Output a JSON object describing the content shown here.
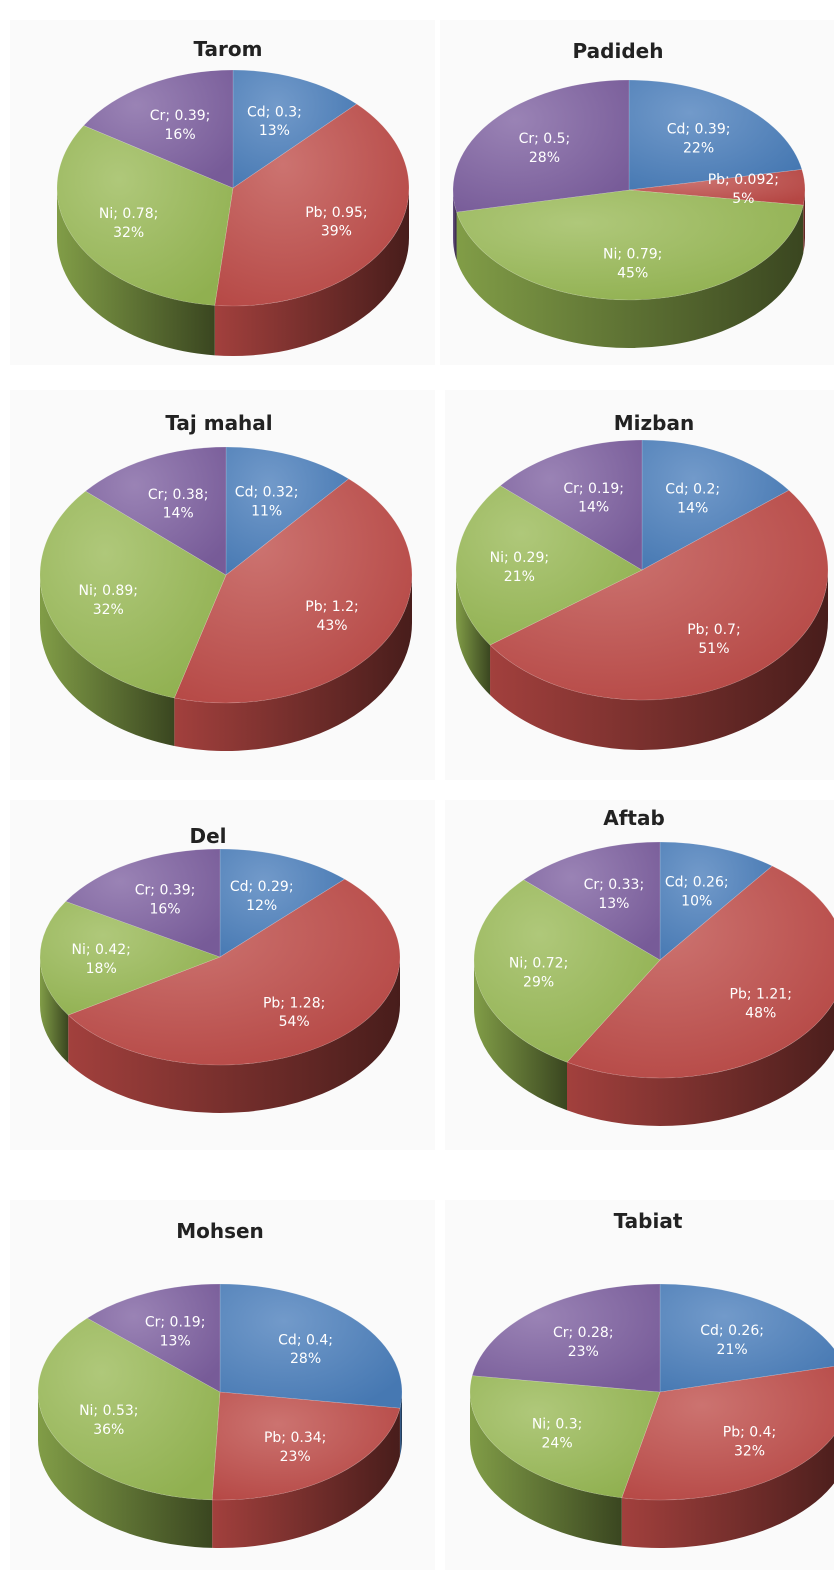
{
  "colors": {
    "Cd": "#4a7ebb",
    "Pb": "#be4b48",
    "Ni": "#98b954",
    "Cr": "#7d60a0"
  },
  "chart_data": [
    {
      "type": "pie",
      "title": "Tarom",
      "slices": [
        {
          "element": "Cd",
          "value": 0.3,
          "percent": 13,
          "label": [
            "Cd; 0.3;",
            "13%"
          ]
        },
        {
          "element": "Pb",
          "value": 0.95,
          "percent": 39,
          "label": [
            "Pb; 0.95;",
            "39%"
          ]
        },
        {
          "element": "Ni",
          "value": 0.78,
          "percent": 32,
          "label": [
            "Ni; 0.78;",
            "32%"
          ]
        },
        {
          "element": "Cr",
          "value": 0.39,
          "percent": 16,
          "label": [
            "Cr; 0.39;",
            "16%"
          ]
        }
      ]
    },
    {
      "type": "pie",
      "title": "Padideh",
      "slices": [
        {
          "element": "Cd",
          "value": 0.39,
          "percent": 22,
          "label": [
            "Cd; 0.39;",
            "22%"
          ]
        },
        {
          "element": "Pb",
          "value": 0.092,
          "percent": 5,
          "label": [
            "Pb; 0.092;",
            "5%"
          ]
        },
        {
          "element": "Ni",
          "value": 0.79,
          "percent": 45,
          "label": [
            "Ni; 0.79;",
            "45%"
          ]
        },
        {
          "element": "Cr",
          "value": 0.5,
          "percent": 28,
          "label": [
            "Cr; 0.5;",
            "28%"
          ]
        }
      ]
    },
    {
      "type": "pie",
      "title": "Taj mahal",
      "slices": [
        {
          "element": "Cd",
          "value": 0.32,
          "percent": 11,
          "label": [
            "Cd; 0.32;",
            "11%"
          ]
        },
        {
          "element": "Pb",
          "value": 1.2,
          "percent": 43,
          "label": [
            "Pb; 1.2;",
            "43%"
          ]
        },
        {
          "element": "Ni",
          "value": 0.89,
          "percent": 32,
          "label": [
            "Ni; 0.89;",
            "32%"
          ]
        },
        {
          "element": "Cr",
          "value": 0.38,
          "percent": 14,
          "label": [
            "Cr; 0.38;",
            "14%"
          ]
        }
      ]
    },
    {
      "type": "pie",
      "title": "Mizban",
      "slices": [
        {
          "element": "Cd",
          "value": 0.2,
          "percent": 14,
          "label": [
            "Cd; 0.2;",
            "14%"
          ]
        },
        {
          "element": "Pb",
          "value": 0.7,
          "percent": 51,
          "label": [
            "Pb; 0.7;",
            "51%"
          ]
        },
        {
          "element": "Ni",
          "value": 0.29,
          "percent": 21,
          "label": [
            "Ni; 0.29;",
            "21%"
          ]
        },
        {
          "element": "Cr",
          "value": 0.19,
          "percent": 14,
          "label": [
            "Cr; 0.19;",
            "14%"
          ]
        }
      ]
    },
    {
      "type": "pie",
      "title": "Del",
      "slices": [
        {
          "element": "Cd",
          "value": 0.29,
          "percent": 12,
          "label": [
            "Cd; 0.29;",
            "12%"
          ]
        },
        {
          "element": "Pb",
          "value": 1.28,
          "percent": 54,
          "label": [
            "Pb; 1.28;",
            "54%"
          ]
        },
        {
          "element": "Ni",
          "value": 0.42,
          "percent": 18,
          "label": [
            "Ni; 0.42;",
            "18%"
          ]
        },
        {
          "element": "Cr",
          "value": 0.39,
          "percent": 16,
          "label": [
            "Cr; 0.39;",
            "16%"
          ]
        }
      ]
    },
    {
      "type": "pie",
      "title": "Aftab",
      "slices": [
        {
          "element": "Cd",
          "value": 0.26,
          "percent": 10,
          "label": [
            "Cd; 0.26;",
            "10%"
          ]
        },
        {
          "element": "Pb",
          "value": 1.21,
          "percent": 48,
          "label": [
            "Pb; 1.21;",
            "48%"
          ]
        },
        {
          "element": "Ni",
          "value": 0.72,
          "percent": 29,
          "label": [
            "Ni; 0.72;",
            "29%"
          ]
        },
        {
          "element": "Cr",
          "value": 0.33,
          "percent": 13,
          "label": [
            "Cr; 0.33;",
            "13%"
          ]
        }
      ]
    },
    {
      "type": "pie",
      "title": "Mohsen",
      "slices": [
        {
          "element": "Cd",
          "value": 0.4,
          "percent": 28,
          "label": [
            "Cd; 0.4;",
            "28%"
          ]
        },
        {
          "element": "Pb",
          "value": 0.34,
          "percent": 23,
          "label": [
            "Pb; 0.34;",
            "23%"
          ]
        },
        {
          "element": "Ni",
          "value": 0.53,
          "percent": 36,
          "label": [
            "Ni; 0.53;",
            "36%"
          ]
        },
        {
          "element": "Cr",
          "value": 0.19,
          "percent": 13,
          "label": [
            "Cr; 0.19;",
            "13%"
          ]
        }
      ]
    },
    {
      "type": "pie",
      "title": "Tabiat",
      "slices": [
        {
          "element": "Cd",
          "value": 0.26,
          "percent": 21,
          "label": [
            "Cd; 0.26;",
            "21%"
          ]
        },
        {
          "element": "Pb",
          "value": 0.4,
          "percent": 32,
          "label": [
            "Pb; 0.4;",
            "32%"
          ]
        },
        {
          "element": "Ni",
          "value": 0.3,
          "percent": 24,
          "label": [
            "Ni; 0.3;",
            "24%"
          ]
        },
        {
          "element": "Cr",
          "value": 0.28,
          "percent": 23,
          "label": [
            "Cr; 0.28;",
            "23%"
          ]
        }
      ]
    }
  ]
}
